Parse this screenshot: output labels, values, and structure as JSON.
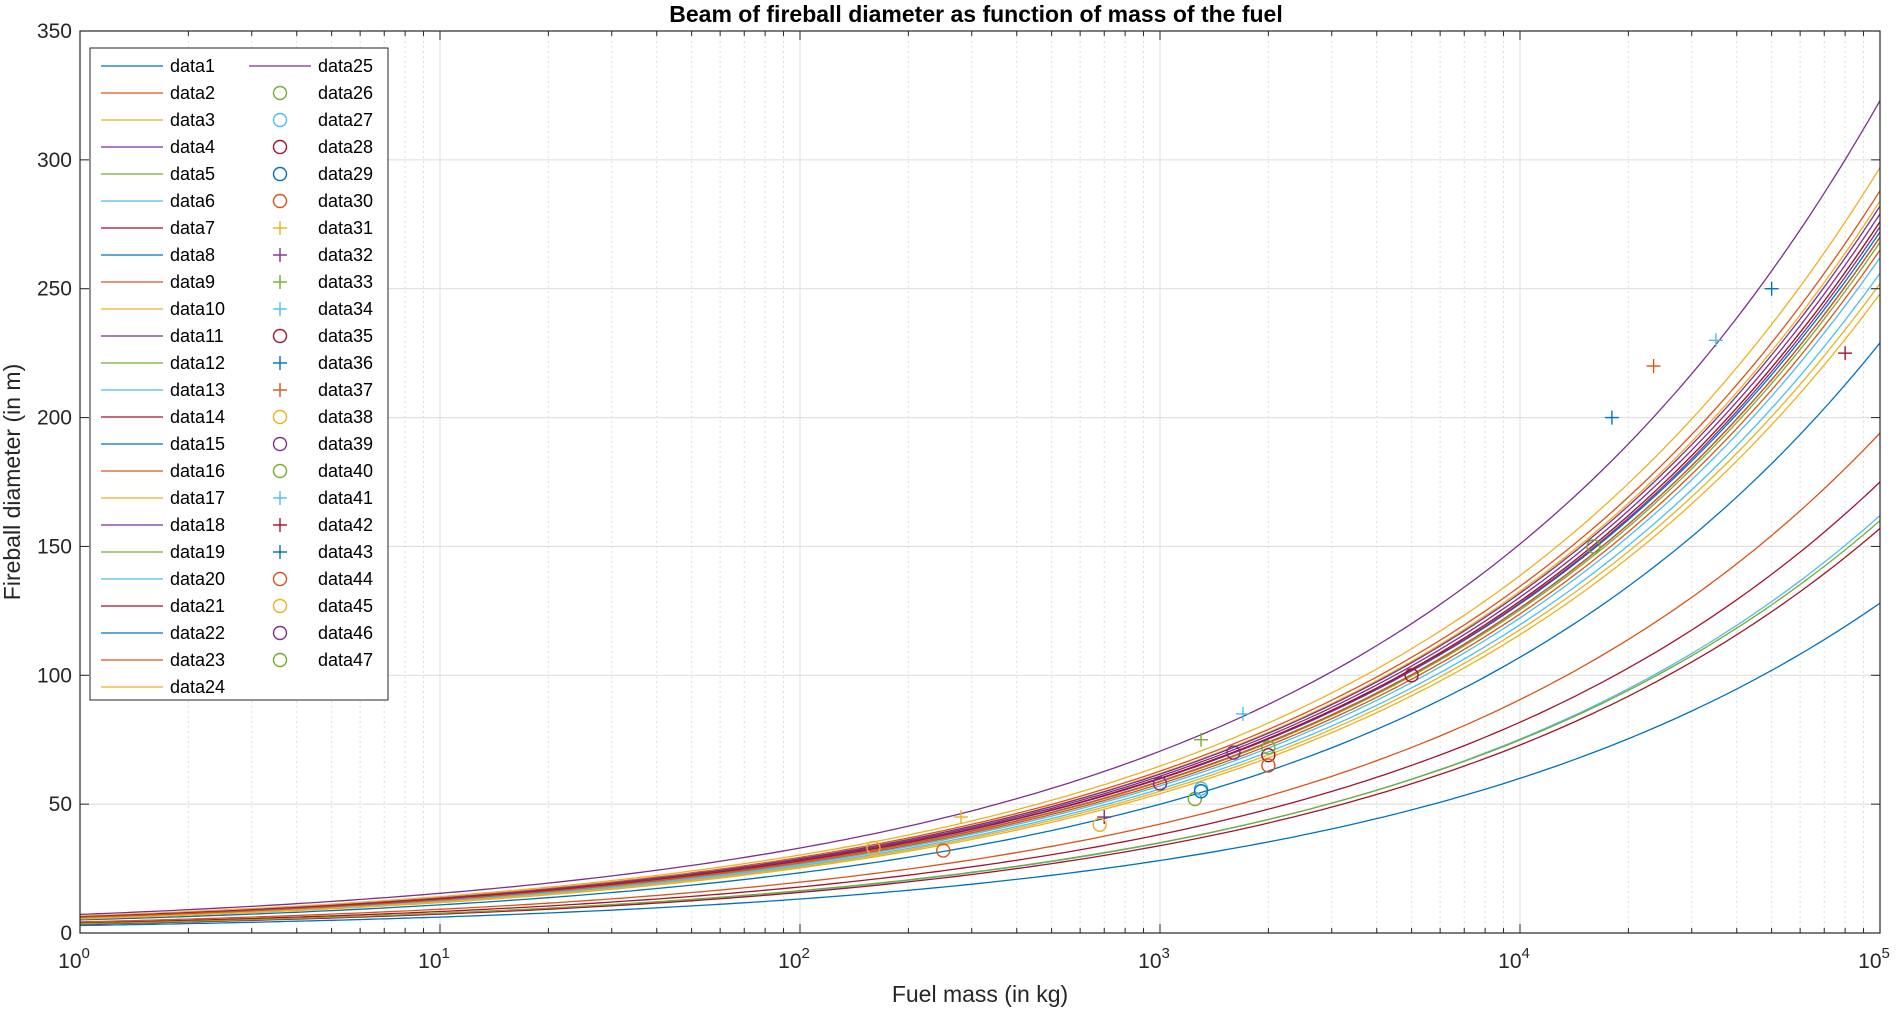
{
  "chart_data": {
    "type": "line",
    "title": "Beam of fireball diameter as function of mass of the fuel",
    "xlabel": "Fuel mass (in kg)",
    "ylabel": "Fireball diameter (in m)",
    "xscale": "log",
    "xlim": [
      1,
      100000
    ],
    "ylim": [
      0,
      350
    ],
    "yticks": [
      0,
      50,
      100,
      150,
      200,
      250,
      300,
      350
    ],
    "xtick_labels": [
      {
        "base": "10",
        "exp": "0"
      },
      {
        "base": "10",
        "exp": "1"
      },
      {
        "base": "10",
        "exp": "2"
      },
      {
        "base": "10",
        "exp": "3"
      },
      {
        "base": "10",
        "exp": "4"
      },
      {
        "base": "10",
        "exp": "5"
      }
    ],
    "grid": true,
    "minor_grid": true,
    "legend_position": "top-left",
    "line_series": [
      {
        "name": "data1",
        "color": "#0072BD",
        "y_at_1kg": 6.2,
        "y_at_100000kg": 272
      },
      {
        "name": "data2",
        "color": "#D95319",
        "y_at_1kg": 6.4,
        "y_at_100000kg": 288
      },
      {
        "name": "data3",
        "color": "#EDB120",
        "y_at_1kg": 6.3,
        "y_at_100000kg": 284
      },
      {
        "name": "data4",
        "color": "#7E2F8E",
        "y_at_1kg": 6.2,
        "y_at_100000kg": 279
      },
      {
        "name": "data5",
        "color": "#77AC30",
        "y_at_1kg": 6.1,
        "y_at_100000kg": 276
      },
      {
        "name": "data6",
        "color": "#4DBEEE",
        "y_at_1kg": 3.5,
        "y_at_100000kg": 162
      },
      {
        "name": "data7",
        "color": "#A2142F",
        "y_at_1kg": 3.4,
        "y_at_100000kg": 157
      },
      {
        "name": "data8",
        "color": "#0072BD",
        "y_at_1kg": 6.0,
        "y_at_100000kg": 270
      },
      {
        "name": "data9",
        "color": "#D95319",
        "y_at_1kg": 5.9,
        "y_at_100000kg": 265
      },
      {
        "name": "data10",
        "color": "#EDB120",
        "y_at_1kg": 6.6,
        "y_at_100000kg": 297
      },
      {
        "name": "data11",
        "color": "#7E2F8E",
        "y_at_1kg": 6.1,
        "y_at_100000kg": 274
      },
      {
        "name": "data12",
        "color": "#77AC30",
        "y_at_1kg": 6.0,
        "y_at_100000kg": 268
      },
      {
        "name": "data13",
        "color": "#4DBEEE",
        "y_at_1kg": 5.8,
        "y_at_100000kg": 262
      },
      {
        "name": "data14",
        "color": "#A2142F",
        "y_at_1kg": 3.9,
        "y_at_100000kg": 175
      },
      {
        "name": "data15",
        "color": "#0072BD",
        "y_at_1kg": 5.1,
        "y_at_100000kg": 229
      },
      {
        "name": "data16",
        "color": "#D95319",
        "y_at_1kg": 4.3,
        "y_at_100000kg": 194
      },
      {
        "name": "data17",
        "color": "#EDB120",
        "y_at_1kg": 5.5,
        "y_at_100000kg": 248
      },
      {
        "name": "data18",
        "color": "#7E2F8E",
        "y_at_1kg": 6.3,
        "y_at_100000kg": 282
      },
      {
        "name": "data19",
        "color": "#77AC30",
        "y_at_1kg": 3.6,
        "y_at_100000kg": 160
      },
      {
        "name": "data20",
        "color": "#4DBEEE",
        "y_at_1kg": 5.7,
        "y_at_100000kg": 256
      },
      {
        "name": "data21",
        "color": "#A2142F",
        "y_at_1kg": 6.1,
        "y_at_100000kg": 276
      },
      {
        "name": "data22",
        "color": "#0072BD",
        "y_at_1kg": 2.9,
        "y_at_100000kg": 128
      },
      {
        "name": "data23",
        "color": "#D95319",
        "y_at_1kg": 6.0,
        "y_at_100000kg": 270
      },
      {
        "name": "data24",
        "color": "#EDB120",
        "y_at_1kg": 5.6,
        "y_at_100000kg": 252
      },
      {
        "name": "data25",
        "color": "#7E2F8E",
        "y_at_1kg": 7.2,
        "y_at_100000kg": 323
      }
    ],
    "marker_series": [
      {
        "name": "data26",
        "color": "#77AC30",
        "marker": "circle",
        "x": 1250,
        "y": 52
      },
      {
        "name": "data27",
        "color": "#4DBEEE",
        "marker": "circle",
        "x": 1300,
        "y": 56
      },
      {
        "name": "data28",
        "color": "#A2142F",
        "marker": "circle",
        "x": 2000,
        "y": 69
      },
      {
        "name": "data29",
        "color": "#0072BD",
        "marker": "circle",
        "x": 1300,
        "y": 55
      },
      {
        "name": "data30",
        "color": "#D95319",
        "marker": "circle",
        "x": 2000,
        "y": 65
      },
      {
        "name": "data31",
        "color": "#EDB120",
        "marker": "plus",
        "x": 280,
        "y": 45
      },
      {
        "name": "data32",
        "color": "#7E2F8E",
        "marker": "plus",
        "x": 700,
        "y": 45
      },
      {
        "name": "data33",
        "color": "#77AC30",
        "marker": "plus",
        "x": 1300,
        "y": 75
      },
      {
        "name": "data34",
        "color": "#4DBEEE",
        "marker": "plus",
        "x": 1700,
        "y": 85
      },
      {
        "name": "data35",
        "color": "#A2142F",
        "marker": "circle",
        "x": 5000,
        "y": 100
      },
      {
        "name": "data36",
        "color": "#0072BD",
        "marker": "plus",
        "x": 18000,
        "y": 200
      },
      {
        "name": "data37",
        "color": "#D95319",
        "marker": "plus",
        "x": 23500,
        "y": 220
      },
      {
        "name": "data38",
        "color": "#EDB120",
        "marker": "circle",
        "x": 680,
        "y": 42
      },
      {
        "name": "data39",
        "color": "#7E2F8E",
        "marker": "circle",
        "x": 1600,
        "y": 70
      },
      {
        "name": "data40",
        "color": "#77AC30",
        "marker": "circle",
        "x": 2000,
        "y": 72
      },
      {
        "name": "data41",
        "color": "#4DBEEE",
        "marker": "plus",
        "x": 35000,
        "y": 230
      },
      {
        "name": "data42",
        "color": "#A2142F",
        "marker": "plus",
        "x": 80000,
        "y": 225
      },
      {
        "name": "data43",
        "color": "#0072BD",
        "marker": "plus",
        "x": 50000,
        "y": 250
      },
      {
        "name": "data44",
        "color": "#D95319",
        "marker": "circle",
        "x": 250,
        "y": 32
      },
      {
        "name": "data45",
        "color": "#EDB120",
        "marker": "circle",
        "x": 160,
        "y": 33
      },
      {
        "name": "data46",
        "color": "#7E2F8E",
        "marker": "circle",
        "x": 1000,
        "y": 58
      },
      {
        "name": "data47",
        "color": "#77AC30",
        "marker": "circle",
        "x": 16000,
        "y": 150
      }
    ]
  }
}
